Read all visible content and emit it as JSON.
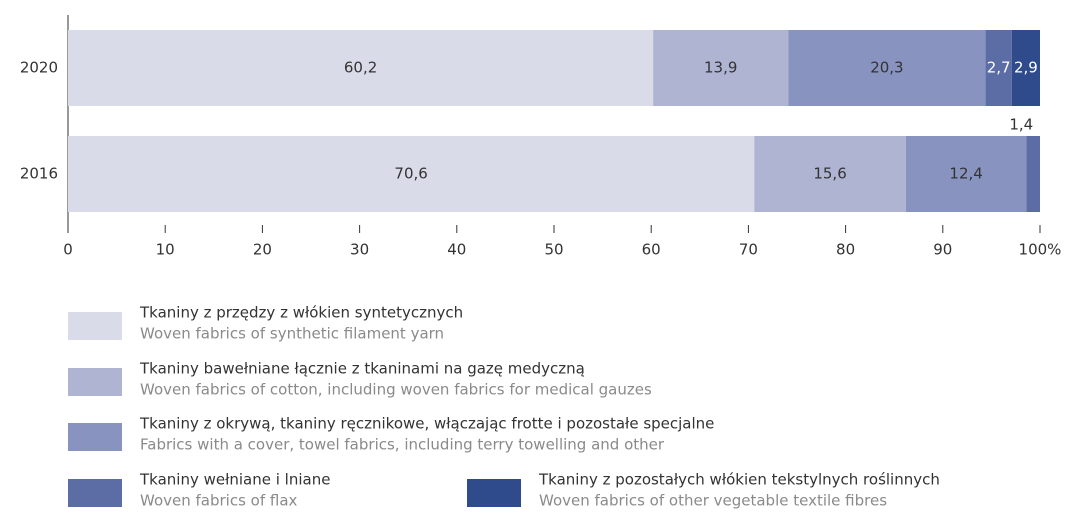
{
  "chart_data": {
    "type": "stacked_barh",
    "categories": [
      "2020",
      "2016"
    ],
    "series": [
      {
        "name": "Tkaniny z przędzy z włókien syntetycznych",
        "name_en": "Woven fabrics of synthetic filament yarn",
        "color": "#d9dbe9",
        "values": [
          60.2,
          70.6
        ],
        "value_labels": [
          "60,2",
          "70,6"
        ]
      },
      {
        "name": "Tkaniny bawełniane łącznie z tkaninami na gazę medyczną",
        "name_en": "Woven fabrics of cotton, including woven fabrics for medical gauzes",
        "color": "#b0b4d3",
        "values": [
          13.9,
          15.6
        ],
        "value_labels": [
          "13,9",
          "15,6"
        ]
      },
      {
        "name": "Tkaniny z okrywą, tkaniny ręcznikowe, włączając frotte i pozostałe specjalne",
        "name_en": "Fabrics with a cover, towel fabrics, including terry towelling and other",
        "color": "#8893bf",
        "values": [
          20.3,
          12.4
        ],
        "value_labels": [
          "20,3",
          "12,4"
        ]
      },
      {
        "name": "Tkaniny wełniane i lniane",
        "name_en": "Woven fabrics of flax",
        "color": "#5c6ca4",
        "values": [
          2.7,
          1.4
        ],
        "value_labels": [
          "2,7",
          "1,4"
        ]
      },
      {
        "name": "Tkaniny z pozostałych włókien tekstylnych roślinnych",
        "name_en": "Woven fabrics of other vegetable textile fibres",
        "color": "#2f4b8c",
        "values": [
          2.9,
          null
        ],
        "value_labels": [
          "2,9",
          null
        ]
      }
    ],
    "xlim": [
      0,
      100
    ],
    "xticks": [
      0,
      10,
      20,
      30,
      40,
      50,
      60,
      70,
      80,
      90,
      {
        "value": 100,
        "label": "100%"
      }
    ]
  }
}
